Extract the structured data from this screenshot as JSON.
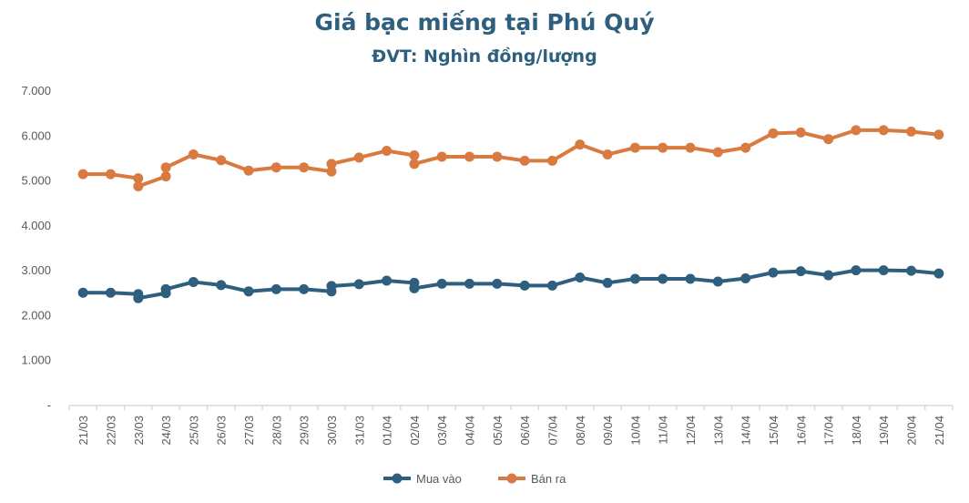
{
  "chart_data": {
    "type": "line",
    "title": "Giá bạc miếng tại Phú Quý",
    "subtitle": "ĐVT: Nghìn đồng/lượng",
    "xlabel": "",
    "ylabel": "",
    "ylim": [
      0,
      7000
    ],
    "y_ticks": [
      {
        "value": 0,
        "label": "-"
      },
      {
        "value": 1000,
        "label": "1.000"
      },
      {
        "value": 2000,
        "label": "2.000"
      },
      {
        "value": 3000,
        "label": "3.000"
      },
      {
        "value": 4000,
        "label": "4.000"
      },
      {
        "value": 5000,
        "label": "5.000"
      },
      {
        "value": 6000,
        "label": "6.000"
      },
      {
        "value": 7000,
        "label": "7.000"
      }
    ],
    "grid": false,
    "legend_position": "bottom",
    "categories": [
      "21/03",
      "22/03",
      "23/03",
      "24/03",
      "25/03",
      "26/03",
      "27/03",
      "28/03",
      "29/03",
      "30/03",
      "31/03",
      "01/04",
      "02/04",
      "03/04",
      "04/04",
      "05/04",
      "06/04",
      "07/04",
      "08/04",
      "09/04",
      "10/04",
      "11/04",
      "12/04",
      "13/04",
      "14/04",
      "15/04",
      "16/04",
      "17/04",
      "18/04",
      "19/04",
      "20/04",
      "21/04"
    ],
    "series": [
      {
        "name": "Mua vào",
        "color": "#2e5f7e",
        "points": [
          [
            "21/03",
            2490
          ],
          [
            "22/03",
            2490
          ],
          [
            "23/03",
            2460
          ],
          [
            "23/03",
            2370
          ],
          [
            "24/03",
            2480
          ],
          [
            "24/03",
            2570
          ],
          [
            "25/03",
            2730
          ],
          [
            "26/03",
            2660
          ],
          [
            "27/03",
            2520
          ],
          [
            "28/03",
            2570
          ],
          [
            "29/03",
            2570
          ],
          [
            "30/03",
            2520
          ],
          [
            "30/03",
            2640
          ],
          [
            "31/03",
            2680
          ],
          [
            "01/04",
            2760
          ],
          [
            "02/04",
            2710
          ],
          [
            "02/04",
            2590
          ],
          [
            "03/04",
            2690
          ],
          [
            "04/04",
            2690
          ],
          [
            "05/04",
            2690
          ],
          [
            "06/04",
            2650
          ],
          [
            "07/04",
            2650
          ],
          [
            "08/04",
            2830
          ],
          [
            "09/04",
            2710
          ],
          [
            "10/04",
            2800
          ],
          [
            "11/04",
            2800
          ],
          [
            "12/04",
            2800
          ],
          [
            "13/04",
            2740
          ],
          [
            "14/04",
            2810
          ],
          [
            "15/04",
            2940
          ],
          [
            "16/04",
            2970
          ],
          [
            "17/04",
            2880
          ],
          [
            "18/04",
            2990
          ],
          [
            "19/04",
            2990
          ],
          [
            "20/04",
            2980
          ],
          [
            "21/04",
            2920
          ]
        ]
      },
      {
        "name": "Bán ra",
        "color": "#d97a41",
        "points": [
          [
            "21/03",
            5130
          ],
          [
            "22/03",
            5130
          ],
          [
            "23/03",
            5040
          ],
          [
            "23/03",
            4860
          ],
          [
            "24/03",
            5080
          ],
          [
            "24/03",
            5280
          ],
          [
            "25/03",
            5570
          ],
          [
            "26/03",
            5440
          ],
          [
            "27/03",
            5210
          ],
          [
            "28/03",
            5280
          ],
          [
            "29/03",
            5280
          ],
          [
            "30/03",
            5190
          ],
          [
            "30/03",
            5360
          ],
          [
            "31/03",
            5500
          ],
          [
            "01/04",
            5650
          ],
          [
            "02/04",
            5550
          ],
          [
            "02/04",
            5360
          ],
          [
            "03/04",
            5520
          ],
          [
            "04/04",
            5520
          ],
          [
            "05/04",
            5520
          ],
          [
            "06/04",
            5430
          ],
          [
            "07/04",
            5430
          ],
          [
            "08/04",
            5790
          ],
          [
            "09/04",
            5570
          ],
          [
            "10/04",
            5720
          ],
          [
            "11/04",
            5720
          ],
          [
            "12/04",
            5720
          ],
          [
            "13/04",
            5620
          ],
          [
            "14/04",
            5720
          ],
          [
            "15/04",
            6040
          ],
          [
            "16/04",
            6060
          ],
          [
            "17/04",
            5910
          ],
          [
            "18/04",
            6110
          ],
          [
            "19/04",
            6110
          ],
          [
            "20/04",
            6080
          ],
          [
            "21/04",
            6010
          ]
        ]
      }
    ]
  }
}
